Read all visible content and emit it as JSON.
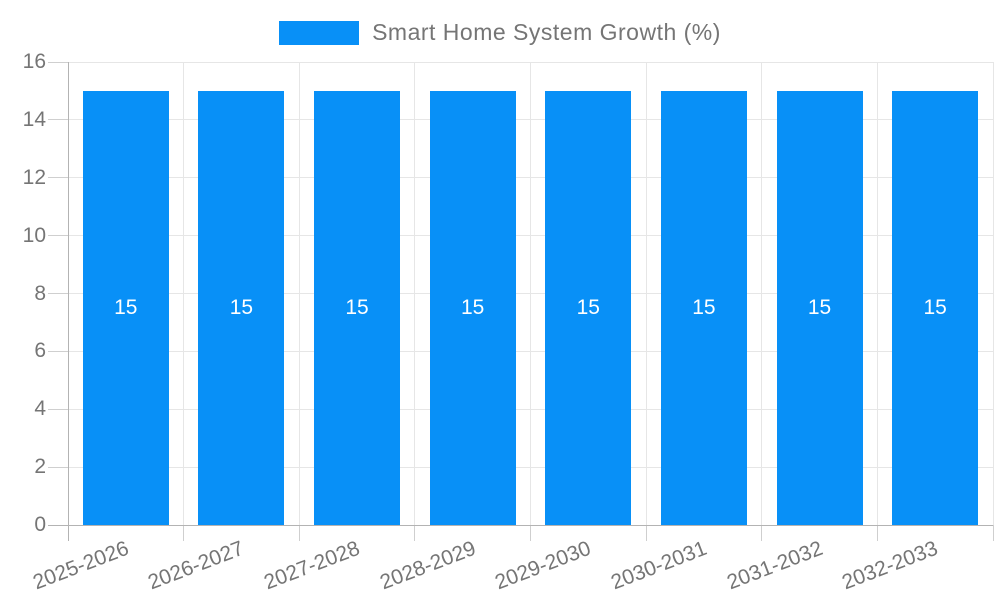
{
  "chart_data": {
    "type": "bar",
    "title": "",
    "legend": {
      "label": "Smart Home System Growth (%)",
      "position": "top"
    },
    "categories": [
      "2025-2026",
      "2026-2027",
      "2027-2028",
      "2028-2029",
      "2029-2030",
      "2030-2031",
      "2031-2032",
      "2032-2033"
    ],
    "values": [
      15,
      15,
      15,
      15,
      15,
      15,
      15,
      15
    ],
    "bar_value_labels": [
      "15",
      "15",
      "15",
      "15",
      "15",
      "15",
      "15",
      "15"
    ],
    "xlabel": "",
    "ylabel": "",
    "ylim": [
      0,
      16
    ],
    "yticks": [
      0,
      2,
      4,
      6,
      8,
      10,
      12,
      14,
      16
    ],
    "grid": true,
    "colors": {
      "bar": "#0890F7",
      "bar_value_text": "#FFFFFF",
      "axis_text": "#757575",
      "legend_text": "#757575",
      "gridline": "#E6E6E6",
      "axis_line": "#B3B3B3",
      "tick_mark": "#CFCFCF",
      "background": "#FFFFFF"
    }
  }
}
